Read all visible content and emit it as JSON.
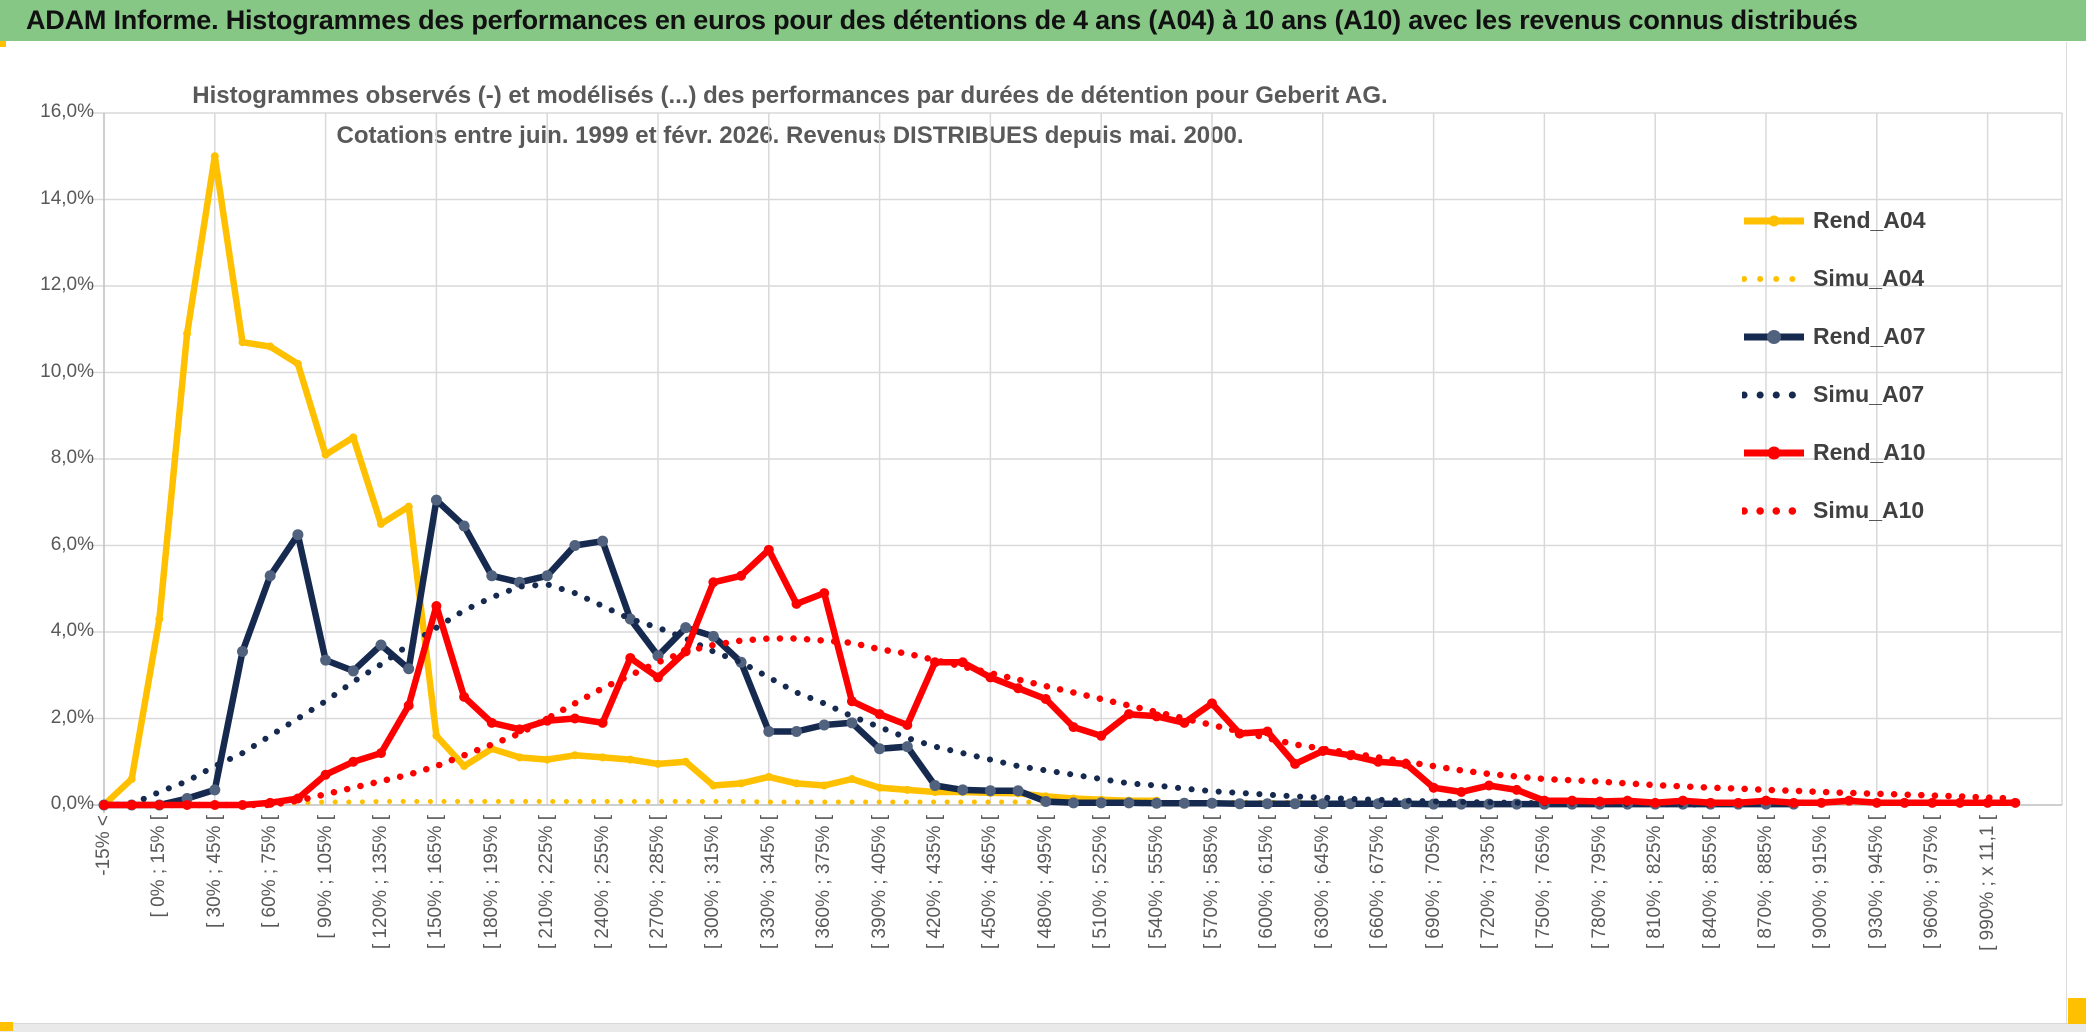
{
  "header": {
    "title": "ADAM Informe. Histogrammes des performances en euros pour des détentions de 4 ans (A04) à 10 ans (A10) avec les revenus connus distribués",
    "bg_color": "#86C786"
  },
  "chart_data": {
    "type": "line",
    "title_line1": "Histogrammes observés (-) et modélisés (...) des performances par durées de détention pour Geberit AG.",
    "title_line2": "Cotations entre juin. 1999 et févr. 2026. Revenus DISTRIBUES depuis mai. 2000.",
    "ylabel": "",
    "xlabel": "",
    "ylim": [
      0,
      16
    ],
    "y_tick_labels": [
      "16,0%",
      "14,0%",
      "12,0%",
      "10,0%",
      "8,0%",
      "6,0%",
      "4,0%",
      "2,0%",
      "0,0%"
    ],
    "grid": true,
    "legend_position": "right-inside",
    "x_label_every": 2,
    "x_labels": [
      "-15% <",
      "[ 0% ; 15% [",
      "[ 30% ; 45% [",
      "[ 60% ; 75% [",
      "[ 90% ; 105% [",
      "[ 120% ; 135% [",
      "[ 150% ; 165% [",
      "[ 180% ; 195% [",
      "[ 210% ; 225% [",
      "[ 240% ; 255% [",
      "[ 270% ; 285% [",
      "[ 300% ; 315% [",
      "[ 330% ; 345% [",
      "[ 360% ; 375% [",
      "[ 390% ; 405% [",
      "[ 420% ; 435% [",
      "[ 450% ; 465% [",
      "[ 480% ; 495% [",
      "[ 510% ; 525% [",
      "[ 540% ; 555% [",
      "[ 570% ; 585% [",
      "[ 600% ; 615% [",
      "[ 630% ; 645% [",
      "[ 660% ; 675% [",
      "[ 690% ; 705% [",
      "[ 720% ; 735% [",
      "[ 750% ; 765% [",
      "[ 780% ; 795% [",
      "[ 810% ; 825% [",
      "[ 840% ; 855% [",
      "[ 870% ; 885% [",
      "[ 900% ; 915% [",
      "[ 930% ; 945% [",
      "[ 960% ; 975% [",
      "[ 990% ; x 11,1 ["
    ],
    "series": [
      {
        "name": "Rend_A04",
        "style": "solid",
        "color": "#FFC000",
        "marker_color": "#FFC000",
        "marker_r": 4,
        "values": [
          0,
          0.6,
          4.3,
          10.9,
          15.0,
          10.7,
          10.6,
          10.2,
          8.1,
          8.5,
          6.5,
          6.9,
          1.6,
          0.9,
          1.3,
          1.1,
          1.05,
          1.15,
          1.1,
          1.05,
          0.95,
          1.0,
          0.45,
          0.5,
          0.65,
          0.5,
          0.45,
          0.6,
          0.4,
          0.35,
          0.3,
          0.3,
          0.28,
          0.27,
          0.2,
          0.15,
          0.12,
          0.1,
          0.1
        ]
      },
      {
        "name": "Simu_A04",
        "style": "dotted",
        "color": "#FFC000",
        "dot_w": 5,
        "values": [
          0,
          0,
          0,
          0,
          0,
          0,
          0.03,
          0.05,
          0.07,
          0.07,
          0.08,
          0.08,
          0.08,
          0.08,
          0.08,
          0.08,
          0.08,
          0.08,
          0.08,
          0.08,
          0.08,
          0.08,
          0.08,
          0.08,
          0.07,
          0.07,
          0.07,
          0.07,
          0.07,
          0.07,
          0.07,
          0.07,
          0.07,
          0.07,
          0.07,
          0.07,
          0.06,
          0.06,
          0.06,
          0.06,
          0.06,
          0.06,
          0.06,
          0.06,
          0.06,
          0.05,
          0.05,
          0.05,
          0.05,
          0.05,
          0.05,
          0.05,
          0.05,
          0.05,
          0.05,
          0.05,
          0.05,
          0.05,
          0.05,
          0.05,
          0.05,
          0.05,
          0.05,
          0.05,
          0.05,
          0.05,
          0.05,
          0.05,
          0.05,
          0.05
        ]
      },
      {
        "name": "Rend_A07",
        "style": "solid",
        "color": "#16294F",
        "marker_color": "#51627E",
        "marker_r": 5.5,
        "values": [
          0,
          0,
          0,
          0.15,
          0.35,
          3.55,
          5.3,
          6.25,
          3.35,
          3.1,
          3.7,
          3.15,
          7.05,
          6.45,
          5.3,
          5.15,
          5.3,
          6.0,
          6.1,
          4.3,
          3.45,
          4.1,
          3.9,
          3.3,
          1.7,
          1.7,
          1.85,
          1.9,
          1.3,
          1.35,
          0.45,
          0.35,
          0.33,
          0.33,
          0.08,
          0.05,
          0.05,
          0.05,
          0.04,
          0.04,
          0.04,
          0.03,
          0.03,
          0.03,
          0.03,
          0.03,
          0.03,
          0.03,
          0.02,
          0.02,
          0.02,
          0.02,
          0.02,
          0.02,
          0.02,
          0.02,
          0.02,
          0.02,
          0.02,
          0.02,
          0.02,
          0.02
        ]
      },
      {
        "name": "Simu_A07",
        "style": "dotted",
        "color": "#16294F",
        "dot_w": 6,
        "values": [
          0,
          0.02,
          0.3,
          0.55,
          0.9,
          1.2,
          1.6,
          2.0,
          2.4,
          2.85,
          3.25,
          3.7,
          4.1,
          4.5,
          4.8,
          5.05,
          5.1,
          4.9,
          4.6,
          4.3,
          4.1,
          3.85,
          3.55,
          3.3,
          2.95,
          2.6,
          2.35,
          2.05,
          1.8,
          1.55,
          1.35,
          1.2,
          1.05,
          0.9,
          0.8,
          0.7,
          0.6,
          0.5,
          0.45,
          0.38,
          0.32,
          0.28,
          0.24,
          0.2,
          0.17,
          0.14,
          0.12,
          0.1,
          0.08,
          0.07,
          0.06,
          0.05,
          0.04,
          0.03,
          0.03,
          0.02,
          0.02,
          0.01,
          0.01
        ]
      },
      {
        "name": "Rend_A10",
        "style": "solid",
        "color": "#FF0000",
        "marker_color": "#FF0000",
        "marker_r": 5,
        "values": [
          0,
          0,
          0,
          0,
          0,
          0,
          0.05,
          0.15,
          0.7,
          1.0,
          1.2,
          2.3,
          4.6,
          2.5,
          1.9,
          1.75,
          1.95,
          2.0,
          1.9,
          3.4,
          2.95,
          3.55,
          5.15,
          5.3,
          5.9,
          4.65,
          4.9,
          2.4,
          2.1,
          1.85,
          3.3,
          3.3,
          2.95,
          2.7,
          2.45,
          1.8,
          1.6,
          2.1,
          2.05,
          1.9,
          2.35,
          1.65,
          1.7,
          0.95,
          1.25,
          1.15,
          1.0,
          0.95,
          0.4,
          0.3,
          0.45,
          0.35,
          0.1,
          0.1,
          0.08,
          0.1,
          0.05,
          0.1,
          0.05,
          0.05,
          0.1,
          0.05,
          0.05,
          0.1,
          0.05,
          0.05,
          0.05,
          0.05,
          0.05,
          0.05
        ]
      },
      {
        "name": "Simu_A10",
        "style": "dotted",
        "color": "#FF0000",
        "dot_w": 6.5,
        "values": [
          0,
          0,
          0,
          0,
          0,
          0,
          0,
          0.1,
          0.25,
          0.4,
          0.55,
          0.7,
          0.9,
          1.15,
          1.4,
          1.65,
          2.0,
          2.35,
          2.7,
          3.0,
          3.3,
          3.55,
          3.7,
          3.8,
          3.85,
          3.85,
          3.8,
          3.75,
          3.6,
          3.5,
          3.35,
          3.2,
          3.05,
          2.9,
          2.75,
          2.6,
          2.45,
          2.3,
          2.15,
          2.0,
          1.85,
          1.7,
          1.55,
          1.4,
          1.3,
          1.2,
          1.1,
          1.0,
          0.9,
          0.8,
          0.72,
          0.66,
          0.6,
          0.57,
          0.54,
          0.5,
          0.46,
          0.43,
          0.4,
          0.38,
          0.35,
          0.33,
          0.3,
          0.28,
          0.26,
          0.24,
          0.22,
          0.2,
          0.17,
          0.15
        ]
      }
    ]
  },
  "colors": {
    "grid": "#D9D9D9",
    "axis": "#BFBFBF",
    "tick_text": "#595959",
    "title_text": "#595959",
    "legend_text": "#404040",
    "header_green": "#86C786",
    "selection_gold": "#FFC000"
  }
}
